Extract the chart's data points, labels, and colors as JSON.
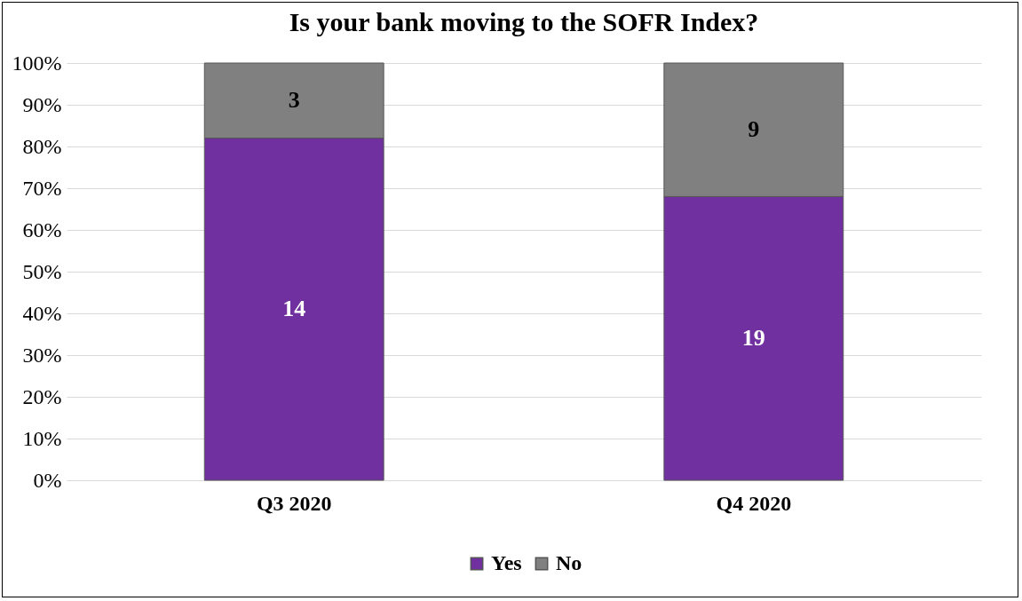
{
  "chart_data": {
    "type": "bar",
    "title": "Is your bank moving to the SOFR Index?",
    "categories": [
      "Q3 2020",
      "Q4 2020"
    ],
    "stacked": true,
    "series": [
      {
        "name": "Yes",
        "color": "#7030a0",
        "values": [
          82,
          68
        ]
      },
      {
        "name": "No",
        "color": "#808080",
        "values": [
          18,
          32
        ]
      }
    ],
    "annotations": [
      "14",
      "19",
      "3",
      "9"
    ],
    "ylim": [
      0,
      100
    ],
    "yticks": [
      {
        "value": 0,
        "label": "0%"
      },
      {
        "value": 10,
        "label": "10%"
      },
      {
        "value": 20,
        "label": "20%"
      },
      {
        "value": 30,
        "label": "30%"
      },
      {
        "value": 40,
        "label": "40%"
      },
      {
        "value": 50,
        "label": "50%"
      },
      {
        "value": 60,
        "label": "60%"
      },
      {
        "value": 70,
        "label": "70%"
      },
      {
        "value": 80,
        "label": "80%"
      },
      {
        "value": 90,
        "label": "90%"
      },
      {
        "value": 100,
        "label": "100%"
      }
    ],
    "grid": "y",
    "legend": "bottom"
  }
}
